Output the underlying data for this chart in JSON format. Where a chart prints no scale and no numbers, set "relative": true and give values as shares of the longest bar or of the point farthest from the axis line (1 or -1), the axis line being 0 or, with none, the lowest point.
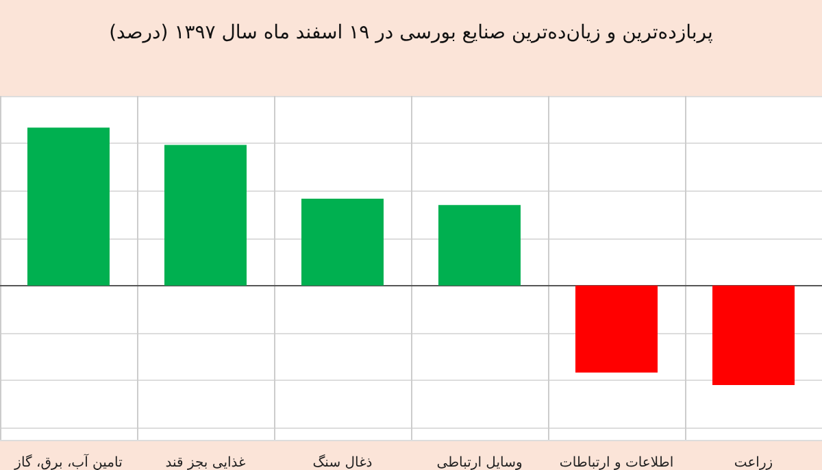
{
  "chart_data": {
    "type": "bar",
    "title": "پربازده‌ترین و زیان‌ده‌ترین صنایع بورسی در ۱۹ اسفند ماه سال ۱۳۹۷ (درصد)",
    "categories": [
      "تامین آب، برق، گاز",
      "غذایی بجز قند",
      "ذغال سنگ",
      "وسایل ارتباطی",
      "اطلاعات و ارتباطات",
      "زراعت"
    ],
    "values": [
      1,
      0.89,
      0.55,
      0.51,
      -0.55,
      -0.63
    ],
    "colors": [
      "#00b050",
      "#00b050",
      "#00b050",
      "#00b050",
      "#ff0000",
      "#ff0000"
    ],
    "relative": true,
    "grid": true
  }
}
